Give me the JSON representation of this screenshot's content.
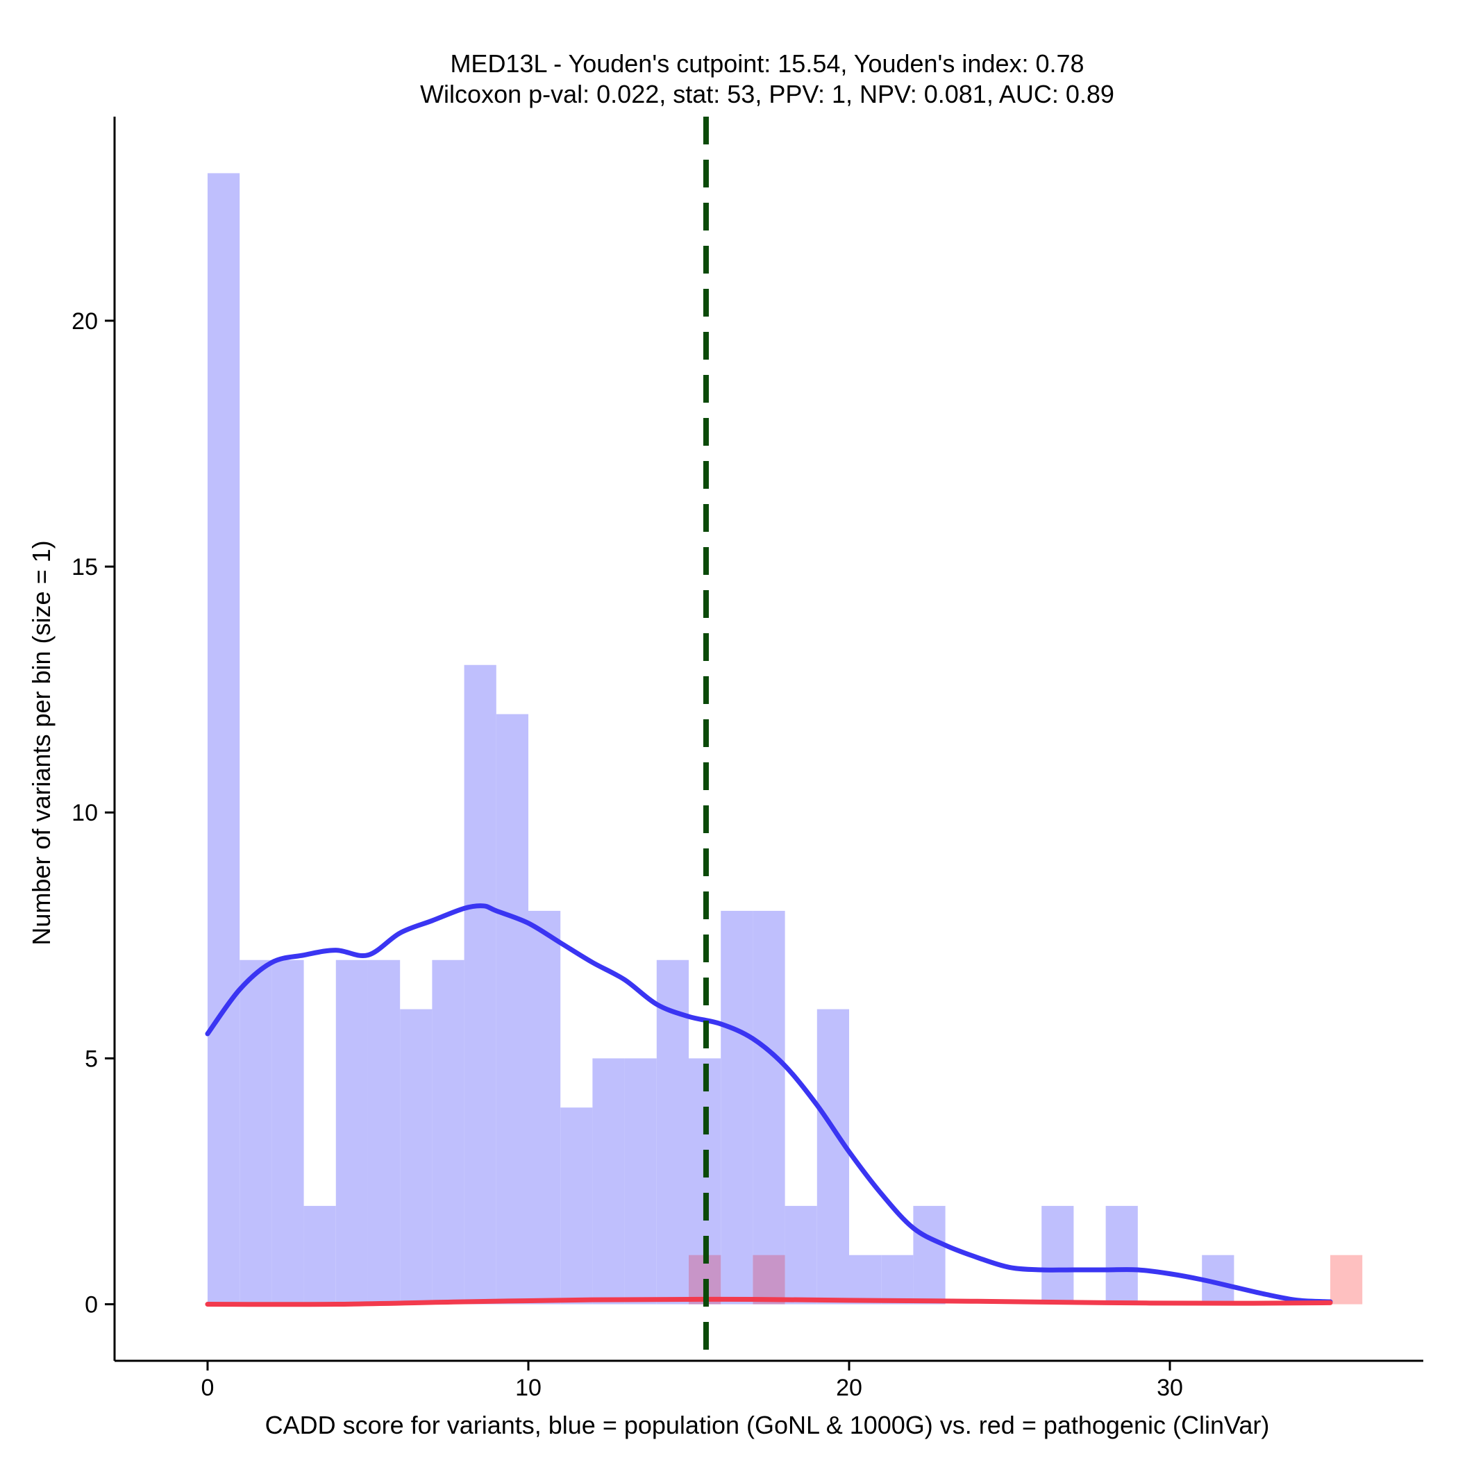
{
  "chart_data": {
    "type": "histogram",
    "title_line1": "MED13L - Youden's cutpoint: 15.54, Youden's index: 0.78",
    "title_line2": "Wilcoxon p-val: 0.022, stat: 53, PPV: 1, NPV: 0.081, AUC: 0.89",
    "xlabel": "CADD score for variants, blue = population (GoNL & 1000G) vs. red = pathogenic (ClinVar)",
    "ylabel": "Number of variants per bin (size = 1)",
    "xlim": [
      -2.9,
      37.9
    ],
    "ylim": [
      -1.15,
      24.15
    ],
    "x_ticks": [
      0,
      10,
      20,
      30
    ],
    "y_ticks": [
      0,
      5,
      10,
      15,
      20
    ],
    "bin_width": 1,
    "cutpoint": 15.54,
    "colors": {
      "population_bar": "#bfbffd",
      "pathogenic_bar": "#fec0c0",
      "overlap_bar": "#c895c8",
      "population_density": "#3a35f2",
      "pathogenic_density": "#f23a4d",
      "cutpoint_line": "#0b4a09"
    },
    "series": [
      {
        "name": "population",
        "bin_starts": [
          0,
          1,
          2,
          3,
          4,
          5,
          6,
          7,
          8,
          9,
          10,
          11,
          12,
          13,
          14,
          15,
          16,
          17,
          18,
          19,
          20,
          21,
          22,
          26,
          28,
          31
        ],
        "values": [
          23,
          7,
          7,
          2,
          7,
          7,
          6,
          7,
          13,
          12,
          8,
          4,
          5,
          5,
          7,
          5,
          8,
          8,
          2,
          6,
          1,
          1,
          2,
          2,
          2,
          1
        ]
      },
      {
        "name": "pathogenic",
        "bin_starts": [
          15,
          17,
          35
        ],
        "values": [
          1,
          1,
          1
        ]
      }
    ],
    "density_population": {
      "x": [
        0,
        1,
        2,
        3,
        4,
        5,
        6,
        7,
        8,
        8.6,
        9,
        10,
        11,
        12,
        13,
        14,
        15,
        16,
        17,
        18,
        19,
        20,
        21,
        22,
        23,
        24,
        25,
        26,
        27,
        28,
        29,
        30,
        31,
        32,
        33,
        34,
        35
      ],
      "y": [
        5.5,
        6.4,
        6.95,
        7.1,
        7.2,
        7.1,
        7.55,
        7.8,
        8.05,
        8.1,
        8.0,
        7.75,
        7.35,
        6.95,
        6.6,
        6.1,
        5.85,
        5.7,
        5.4,
        4.85,
        4.05,
        3.1,
        2.25,
        1.55,
        1.2,
        0.95,
        0.75,
        0.7,
        0.7,
        0.7,
        0.7,
        0.62,
        0.5,
        0.35,
        0.2,
        0.08,
        0.05
      ]
    },
    "density_pathogenic": {
      "x": [
        0,
        4,
        8,
        12,
        15,
        17,
        20,
        24,
        28,
        32,
        35
      ],
      "y": [
        0.0,
        0.0,
        0.05,
        0.09,
        0.1,
        0.1,
        0.08,
        0.06,
        0.03,
        0.02,
        0.03
      ]
    }
  }
}
